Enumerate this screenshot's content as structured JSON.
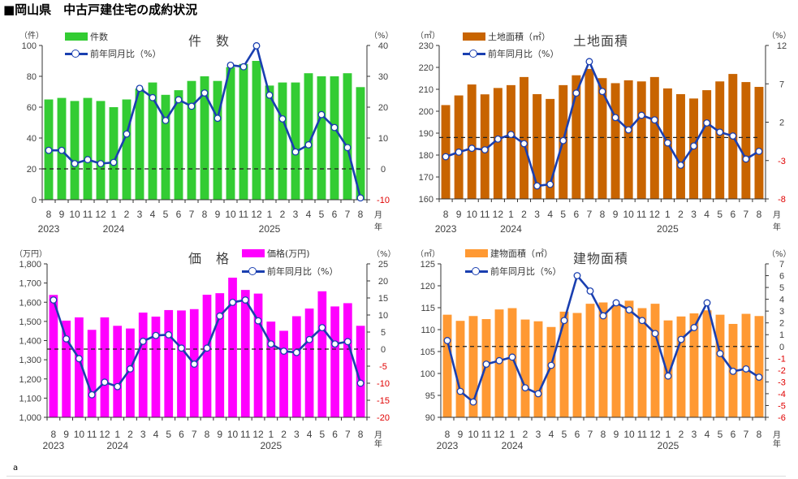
{
  "page_title": "■岡山県　中古戸建住宅の成約状況",
  "footer_text": "a",
  "chart_data": [
    {
      "type": "bar+line",
      "title": "件　数",
      "left_unit": "（件）",
      "right_unit": "（%）",
      "bar_name": "件数",
      "line_name": "前年同月比（%）",
      "bar_color": "#33cc33",
      "line_color": "#1a3fb0",
      "months": [
        "8",
        "9",
        "10",
        "11",
        "12",
        "1",
        "2",
        "3",
        "4",
        "5",
        "6",
        "7",
        "8",
        "9",
        "10",
        "11",
        "12",
        "1",
        "2",
        "3",
        "4",
        "5",
        "6",
        "7",
        "8"
      ],
      "years": [
        "2023",
        "2024",
        "2025"
      ],
      "axis_suffix": [
        "月",
        "年"
      ],
      "ylim_left": [
        0,
        100
      ],
      "ylim_right": [
        -10,
        40
      ],
      "left_ticks": [
        "0",
        "20",
        "40",
        "60",
        "80",
        "100"
      ],
      "right_ticks": [
        "-10",
        "0",
        "10",
        "20",
        "30",
        "40"
      ],
      "bar_values": [
        65,
        66,
        64,
        66,
        64,
        60,
        65,
        72,
        76,
        68,
        71,
        77,
        80,
        77,
        86,
        88,
        90,
        74,
        76,
        76,
        82,
        80,
        80,
        82,
        73
      ],
      "line_values": [
        6.0,
        6.0,
        1.7,
        3.0,
        1.7,
        2.1,
        11.3,
        26.1,
        23.1,
        15.7,
        22.4,
        20.3,
        24.6,
        16.4,
        33.6,
        33.1,
        39.9,
        23.9,
        16.2,
        5.5,
        7.8,
        17.6,
        13.4,
        6.9,
        -9.4
      ]
    },
    {
      "type": "bar+line",
      "title": "土地面積",
      "left_unit": "（㎡）",
      "right_unit": "（%）",
      "bar_name": "土地面積（㎡）",
      "line_name": "前年同月比（%）",
      "bar_color": "#c86400",
      "line_color": "#1a3fb0",
      "months": [
        "8",
        "9",
        "10",
        "11",
        "12",
        "1",
        "2",
        "3",
        "4",
        "5",
        "6",
        "7",
        "8",
        "9",
        "10",
        "11",
        "12",
        "1",
        "2",
        "3",
        "4",
        "5",
        "6",
        "7",
        "8"
      ],
      "years": [
        "2023",
        "2024",
        "2025"
      ],
      "axis_suffix": [
        "月",
        "年"
      ],
      "ylim_left": [
        160,
        230
      ],
      "ylim_right": [
        -8,
        12
      ],
      "left_ticks": [
        "160",
        "170",
        "180",
        "190",
        "200",
        "210",
        "220",
        "230"
      ],
      "right_ticks": [
        "-8",
        "-3",
        "2",
        "7",
        "12"
      ],
      "bar_values": [
        202.8,
        207.2,
        212.2,
        207.7,
        210.6,
        211.9,
        215.6,
        207.8,
        205.6,
        211.9,
        216.4,
        219.3,
        215.1,
        212.8,
        214.1,
        213.6,
        215.6,
        210.4,
        207.8,
        205.8,
        209.6,
        213.6,
        217.0,
        213.3,
        211.1
      ],
      "line_values": [
        -2.5,
        -1.9,
        -1.4,
        -1.6,
        -0.2,
        0.4,
        -0.8,
        -6.3,
        -6.1,
        -0.4,
        5.8,
        9.9,
        6.0,
        2.6,
        1.0,
        2.9,
        2.3,
        -0.7,
        -3.6,
        -1.1,
        1.9,
        0.7,
        0.2,
        -2.8,
        -1.8
      ]
    },
    {
      "type": "bar+line",
      "title": "価　格",
      "left_unit": "（万円）",
      "right_unit": "（%）",
      "bar_name": "価格(万円)",
      "line_name": "前年同月比（%）",
      "bar_color": "#ff00ff",
      "line_color": "#1a3fb0",
      "months": [
        "8",
        "9",
        "10",
        "11",
        "12",
        "1",
        "2",
        "3",
        "4",
        "5",
        "6",
        "7",
        "8",
        "9",
        "10",
        "11",
        "12",
        "1",
        "2",
        "3",
        "4",
        "5",
        "6",
        "7",
        "8"
      ],
      "years": [
        "2023",
        "2024",
        "2025"
      ],
      "axis_suffix": [
        "月",
        "年"
      ],
      "ylim_left": [
        1000,
        1800
      ],
      "ylim_right": [
        -20,
        25
      ],
      "left_ticks": [
        "1,000",
        "1,100",
        "1,200",
        "1,300",
        "1,400",
        "1,500",
        "1,600",
        "1,700",
        "1,800"
      ],
      "right_ticks": [
        "-20",
        "-15",
        "-10",
        "-5",
        "0",
        "5",
        "10",
        "15",
        "20",
        "25"
      ],
      "bar_values": [
        1638,
        1504,
        1521,
        1456,
        1521,
        1477,
        1463,
        1546,
        1525,
        1559,
        1557,
        1564,
        1639,
        1647,
        1728,
        1664,
        1645,
        1499,
        1451,
        1527,
        1567,
        1657,
        1578,
        1595,
        1477
      ],
      "line_values": [
        14.4,
        3.0,
        -2.8,
        -13.4,
        -9.7,
        -11.0,
        -5.8,
        2.3,
        4.0,
        4.2,
        0.3,
        -4.4,
        0.3,
        9.7,
        13.7,
        14.4,
        8.3,
        1.5,
        -0.6,
        -1.0,
        2.8,
        6.3,
        1.5,
        2.2,
        -10.0
      ]
    },
    {
      "type": "bar+line",
      "title": "建物面積",
      "left_unit": "（㎡）",
      "right_unit": "（%）",
      "bar_name": "建物面積（㎡）",
      "line_name": "前年同月比（%）",
      "bar_color": "#ff9933",
      "line_color": "#1a3fb0",
      "months": [
        "8",
        "9",
        "10",
        "11",
        "12",
        "1",
        "2",
        "3",
        "4",
        "5",
        "6",
        "7",
        "8",
        "9",
        "10",
        "11",
        "12",
        "1",
        "2",
        "3",
        "4",
        "5",
        "6",
        "7",
        "8"
      ],
      "years": [
        "2023",
        "2024",
        "2025"
      ],
      "axis_suffix": [
        "月",
        "年"
      ],
      "ylim_left": [
        90,
        125
      ],
      "ylim_right": [
        -6,
        7
      ],
      "left_ticks": [
        "90",
        "95",
        "100",
        "105",
        "110",
        "115",
        "120",
        "125"
      ],
      "right_ticks": [
        "-6",
        "-5",
        "-4",
        "-3",
        "-2",
        "-1",
        "0",
        "1",
        "2",
        "3",
        "4",
        "5",
        "6",
        "7"
      ],
      "bar_values": [
        113.4,
        112.0,
        113.1,
        112.4,
        114.6,
        114.9,
        112.3,
        111.9,
        110.6,
        114.1,
        113.8,
        115.9,
        116.2,
        115.6,
        116.6,
        114.9,
        115.9,
        112.1,
        113.0,
        113.7,
        114.4,
        113.4,
        111.3,
        113.6,
        113.1
      ],
      "line_values": [
        0.5,
        -3.8,
        -4.7,
        -1.5,
        -1.2,
        -0.9,
        -3.5,
        -4.0,
        -1.6,
        2.2,
        6.0,
        4.7,
        2.6,
        3.7,
        3.1,
        2.2,
        1.1,
        -2.5,
        0.6,
        1.6,
        3.7,
        -0.6,
        -2.1,
        -1.9,
        -2.6
      ]
    }
  ]
}
